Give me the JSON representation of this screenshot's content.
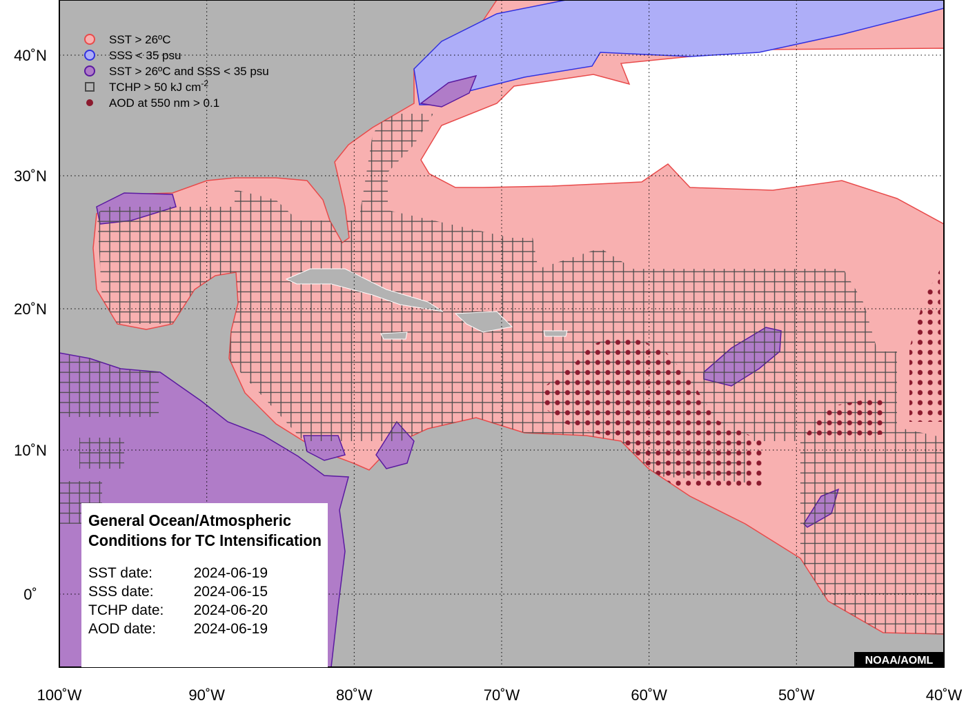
{
  "map": {
    "longitude_labels": [
      "100˚W",
      "90˚W",
      "80˚W",
      "70˚W",
      "60˚W",
      "50˚W",
      "40˚W"
    ],
    "latitude_labels": [
      "40˚N",
      "30˚N",
      "20˚N",
      "10˚N",
      "0˚"
    ],
    "legend": [
      {
        "label": "SST > 26ºC"
      },
      {
        "label": "SSS < 35 psu"
      },
      {
        "label": "SST > 26ºC and SSS < 35 psu"
      },
      {
        "label": "TCHP > 50 kJ cm",
        "superscript": "-2"
      },
      {
        "label": "AOD at 550 nm > 0.1"
      }
    ],
    "info": {
      "title": [
        "General Ocean/Atmospheric",
        "Conditions for TC Intensification"
      ],
      "dates": [
        {
          "label": "SST date:",
          "date": "2024-06-19"
        },
        {
          "label": "SSS date:",
          "date": "2024-06-15"
        },
        {
          "label": "TCHP date:",
          "date": "2024-06-20"
        },
        {
          "label": "AOD date:",
          "date": "2024-06-19"
        }
      ]
    },
    "credit": "NOAA/AOML"
  }
}
